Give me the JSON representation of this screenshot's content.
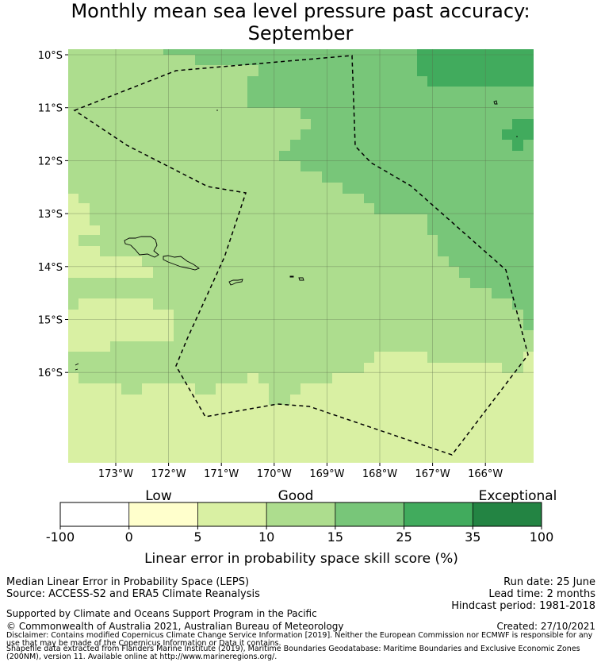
{
  "title": {
    "line1": "Monthly mean sea level pressure past accuracy:",
    "line2": "September"
  },
  "map": {
    "lat_labels": [
      "10°S",
      "11°S",
      "12°S",
      "13°S",
      "14°S",
      "15°S",
      "16°S"
    ],
    "lon_labels": [
      "173°W",
      "172°W",
      "171°W",
      "170°W",
      "169°W",
      "168°W",
      "167°W",
      "166°W"
    ],
    "colors": {
      "class_5_10": "#d9f0a3",
      "class_10_15": "#addd8e",
      "class_15_25": "#78c679",
      "class_25_35": "#41ab5d"
    }
  },
  "colorbar": {
    "category_labels": [
      "Low",
      "Good",
      "Exceptional"
    ],
    "tick_labels": [
      "-100",
      "0",
      "5",
      "10",
      "15",
      "25",
      "35",
      "100"
    ],
    "colors": [
      "#ffffff",
      "#ffffcc",
      "#d9f0a3",
      "#addd8e",
      "#78c679",
      "#41ab5d",
      "#238443"
    ],
    "axis_label": "Linear error in probability space skill score (%)"
  },
  "footer": {
    "method": "Median Linear Error in Probability Space (LEPS)",
    "source": "Source: ACCESS-S2 and ERA5 Climate Reanalysis",
    "run_date": "Run date: 25 June",
    "lead_time": "Lead time: 2 months",
    "hindcast": "Hindcast period: 1981-2018",
    "support": "Supported by Climate and Oceans Support Program in the Pacific",
    "copyright": "© Commonwealth of Australia 2021, Australian Bureau of Meteorology",
    "created": "Created: 27/10/2021",
    "disclaimer": "Disclaimer: Contains modified Copernicus Climate Change Service Information [2019]. Neither the European Commission nor ECMWF is responsible for any use that may be made of the Copernicus Information or Data it contains.",
    "shapefile": "Shapefile data extracted from Flanders Marine Institute (2019), Maritime Boundaries Geodatabase: Maritime Boundaries and Exclusive Economic Zones (200NM), version 11. Available online at http://www.marineregions.org/."
  }
}
